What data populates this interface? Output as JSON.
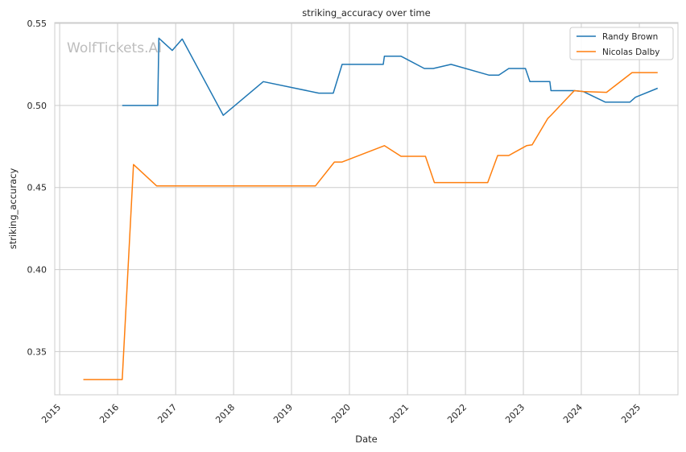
{
  "chart_data": {
    "type": "line",
    "title": "striking_accuracy over time",
    "xlabel": "Date",
    "ylabel": "striking_accuracy",
    "watermark": "WolfTickets.AI",
    "x_ticks": [
      "2015",
      "2016",
      "2017",
      "2018",
      "2019",
      "2020",
      "2021",
      "2022",
      "2023",
      "2024",
      "2025"
    ],
    "y_ticks": [
      "0.35",
      "0.40",
      "0.45",
      "0.50",
      "0.55"
    ],
    "xlim": [
      "2014-12-01",
      "2025-09-01"
    ],
    "ylim": [
      0.3237,
      0.5505
    ],
    "grid": true,
    "legend_position": "top-right",
    "series": [
      {
        "name": "Randy Brown",
        "color": "#1f77b4",
        "points": [
          [
            "2016-01-30",
            0.5
          ],
          [
            "2016-09-10",
            0.5
          ],
          [
            "2016-09-17",
            0.541
          ],
          [
            "2016-12-10",
            0.5335
          ],
          [
            "2017-02-11",
            0.5405
          ],
          [
            "2017-10-28",
            0.494
          ],
          [
            "2018-07-07",
            0.5145
          ],
          [
            "2019-06-22",
            0.5075
          ],
          [
            "2019-09-21",
            0.5075
          ],
          [
            "2019-11-16",
            0.525
          ],
          [
            "2020-08-01",
            0.525
          ],
          [
            "2020-08-08",
            0.53
          ],
          [
            "2020-11-21",
            0.53
          ],
          [
            "2021-04-17",
            0.5225
          ],
          [
            "2021-06-12",
            0.5225
          ],
          [
            "2021-10-02",
            0.525
          ],
          [
            "2022-05-28",
            0.5185
          ],
          [
            "2022-07-30",
            0.5185
          ],
          [
            "2022-10-01",
            0.5225
          ],
          [
            "2023-01-14",
            0.5225
          ],
          [
            "2023-02-11",
            0.5145
          ],
          [
            "2023-06-17",
            0.5145
          ],
          [
            "2023-06-24",
            0.509
          ],
          [
            "2023-11-18",
            0.509
          ],
          [
            "2024-01-13",
            0.5085
          ],
          [
            "2024-06-01",
            0.502
          ],
          [
            "2024-11-02",
            0.502
          ],
          [
            "2024-12-07",
            0.505
          ],
          [
            "2025-04-26",
            0.5105
          ]
        ]
      },
      {
        "name": "Nicolas Dalby",
        "color": "#ff7f0e",
        "points": [
          [
            "2015-05-30",
            0.333
          ],
          [
            "2016-01-30",
            0.333
          ],
          [
            "2016-04-10",
            0.464
          ],
          [
            "2016-09-03",
            0.451
          ],
          [
            "2019-06-01",
            0.451
          ],
          [
            "2019-09-28",
            0.4655
          ],
          [
            "2019-11-16",
            0.4655
          ],
          [
            "2020-08-08",
            0.4755
          ],
          [
            "2020-11-21",
            0.469
          ],
          [
            "2021-04-24",
            0.469
          ],
          [
            "2021-06-19",
            0.453
          ],
          [
            "2022-05-21",
            0.453
          ],
          [
            "2022-07-23",
            0.4695
          ],
          [
            "2022-10-01",
            0.4695
          ],
          [
            "2023-01-21",
            0.4755
          ],
          [
            "2023-02-25",
            0.476
          ],
          [
            "2023-06-03",
            0.492
          ],
          [
            "2023-06-24",
            0.494
          ],
          [
            "2023-11-18",
            0.509
          ],
          [
            "2024-01-13",
            0.5085
          ],
          [
            "2024-06-08",
            0.508
          ],
          [
            "2024-11-16",
            0.52
          ],
          [
            "2025-04-26",
            0.52
          ]
        ]
      }
    ]
  }
}
